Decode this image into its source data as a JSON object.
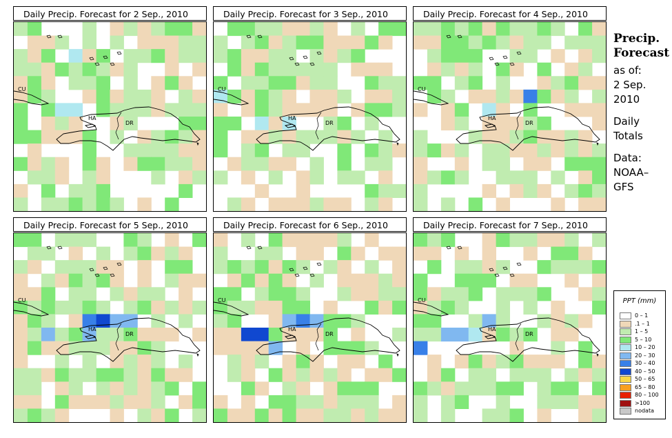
{
  "panels": [
    {
      "title": "Daily Precip. Forecast for  2 Sep., 2010",
      "seed": 11,
      "wet": [
        [
          4,
          2,
          4
        ],
        [
          5,
          3,
          3
        ],
        [
          3,
          6,
          4
        ],
        [
          4,
          6,
          4
        ]
      ]
    },
    {
      "title": "Daily Precip. Forecast for  3 Sep., 2010",
      "seed": 23,
      "wet": [
        [
          0,
          5,
          4
        ],
        [
          5,
          7,
          4
        ],
        [
          3,
          7,
          4
        ]
      ]
    },
    {
      "title": "Daily Precip. Forecast for  4 Sep., 2010",
      "seed": 37,
      "wet": [
        [
          8,
          5,
          6
        ],
        [
          5,
          6,
          4
        ]
      ]
    },
    {
      "title": "Daily Precip. Forecast for  5 Sep., 2010",
      "seed": 41,
      "wet": [
        [
          5,
          6,
          6
        ],
        [
          6,
          6,
          7
        ],
        [
          7,
          6,
          5
        ],
        [
          2,
          7,
          5
        ],
        [
          5,
          7,
          5
        ],
        [
          8,
          6,
          5
        ]
      ]
    },
    {
      "title": "Daily Precip. Forecast for  6 Sep., 2010",
      "seed": 53,
      "wet": [
        [
          2,
          7,
          7
        ],
        [
          3,
          7,
          7
        ],
        [
          5,
          6,
          5
        ],
        [
          6,
          6,
          6
        ],
        [
          7,
          6,
          5
        ],
        [
          4,
          8,
          5
        ]
      ]
    },
    {
      "title": "Daily Precip. Forecast for  7 Sep., 2010",
      "seed": 67,
      "wet": [
        [
          2,
          7,
          5
        ],
        [
          3,
          7,
          5
        ],
        [
          5,
          6,
          5
        ],
        [
          4,
          7,
          4
        ],
        [
          0,
          8,
          6
        ]
      ]
    }
  ],
  "map_labels": {
    "cuba": "CU",
    "haiti": "HA",
    "dominican_republic": "DR"
  },
  "side": {
    "heading_line1": "Precip.",
    "heading_line2": "Forecast",
    "asof": "as of:",
    "date_line1": "2 Sep.",
    "date_line2": "2010",
    "daily1": "Daily",
    "daily2": "Totals",
    "data1": "Data:",
    "data2": "NOAA–",
    "data3": "GFS"
  },
  "legend": {
    "title": "PPT (mm)",
    "items": [
      {
        "label": "0 – 1",
        "color": "#ffffff"
      },
      {
        "label": ".1 – 1",
        "color": "#f0d8b8"
      },
      {
        "label": "1 – 5",
        "color": "#c0ecb0"
      },
      {
        "label": "5 – 10",
        "color": "#80e878"
      },
      {
        "label": "10 – 20",
        "color": "#b0e8f0"
      },
      {
        "label": "20 – 30",
        "color": "#80b8f0"
      },
      {
        "label": "30 – 40",
        "color": "#3880e8"
      },
      {
        "label": "40 – 50",
        "color": "#1048d0"
      },
      {
        "label": "50 – 65",
        "color": "#f8d848"
      },
      {
        "label": "65 – 80",
        "color": "#f8a020"
      },
      {
        "label": "80 – 100",
        "color": "#e82000"
      },
      {
        "label": ">100",
        "color": "#a01010"
      },
      {
        "label": "nodata",
        "color": "#c8c8c8"
      }
    ]
  }
}
